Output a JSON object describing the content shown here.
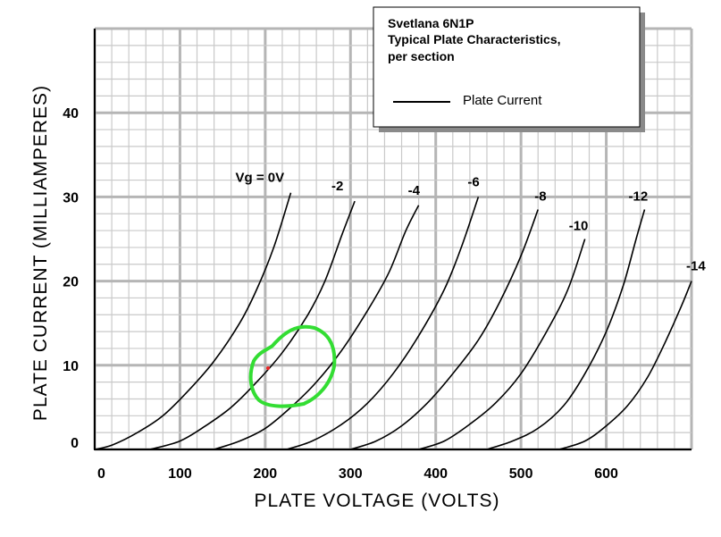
{
  "chart_data": {
    "type": "line",
    "title": [
      "Svetlana 6N1P",
      "Typical Plate Characteristics,",
      "per section"
    ],
    "xlabel": "PLATE VOLTAGE (VOLTS)",
    "ylabel": "PLATE CURRENT (MILLIAMPERES)",
    "xlim": [
      0,
      700
    ],
    "ylim": [
      0,
      50
    ],
    "x_ticks": [
      0,
      100,
      200,
      300,
      400,
      500,
      600
    ],
    "y_ticks": [
      0,
      10,
      20,
      30,
      40
    ],
    "grid": true,
    "legend": {
      "position": "top-right",
      "entries": [
        {
          "label": "Plate Current",
          "color": "#000000"
        }
      ]
    },
    "series": [
      {
        "name": "Vg = 0V",
        "points": [
          [
            0,
            0
          ],
          [
            20,
            0.5
          ],
          [
            50,
            2
          ],
          [
            80,
            4
          ],
          [
            110,
            7
          ],
          [
            140,
            10.5
          ],
          [
            170,
            15
          ],
          [
            190,
            19
          ],
          [
            210,
            24
          ],
          [
            230,
            30.5
          ]
        ]
      },
      {
        "name": "-2",
        "points": [
          [
            65,
            0
          ],
          [
            100,
            1
          ],
          [
            130,
            2.8
          ],
          [
            160,
            5
          ],
          [
            190,
            8
          ],
          [
            220,
            11.5
          ],
          [
            250,
            16
          ],
          [
            270,
            20
          ],
          [
            290,
            25.5
          ],
          [
            305,
            29.5
          ]
        ]
      },
      {
        "name": "-4",
        "points": [
          [
            140,
            0
          ],
          [
            170,
            1
          ],
          [
            200,
            2.5
          ],
          [
            230,
            5
          ],
          [
            260,
            8
          ],
          [
            290,
            11.8
          ],
          [
            320,
            16.5
          ],
          [
            345,
            21
          ],
          [
            365,
            26
          ],
          [
            380,
            29
          ]
        ]
      },
      {
        "name": "-6",
        "points": [
          [
            225,
            0
          ],
          [
            255,
            1
          ],
          [
            290,
            3
          ],
          [
            320,
            5.5
          ],
          [
            350,
            9
          ],
          [
            380,
            13.5
          ],
          [
            410,
            19
          ],
          [
            430,
            24
          ],
          [
            450,
            30
          ]
        ]
      },
      {
        "name": "-8",
        "points": [
          [
            300,
            0
          ],
          [
            330,
            1
          ],
          [
            360,
            2.8
          ],
          [
            390,
            5.5
          ],
          [
            420,
            9
          ],
          [
            450,
            13
          ],
          [
            475,
            17.5
          ],
          [
            500,
            23
          ],
          [
            520,
            28.5
          ]
        ]
      },
      {
        "name": "-10",
        "points": [
          [
            380,
            0
          ],
          [
            410,
            1
          ],
          [
            440,
            3
          ],
          [
            470,
            5.5
          ],
          [
            500,
            9
          ],
          [
            530,
            14
          ],
          [
            555,
            19
          ],
          [
            575,
            25
          ]
        ]
      },
      {
        "name": "-12",
        "points": [
          [
            460,
            0
          ],
          [
            490,
            1
          ],
          [
            520,
            2.5
          ],
          [
            550,
            5.2
          ],
          [
            575,
            9
          ],
          [
            600,
            14
          ],
          [
            620,
            19.5
          ],
          [
            635,
            25
          ],
          [
            645,
            28.5
          ]
        ]
      },
      {
        "name": "-14",
        "points": [
          [
            545,
            0
          ],
          [
            575,
            1
          ],
          [
            600,
            2.8
          ],
          [
            625,
            5.2
          ],
          [
            648,
            8.5
          ],
          [
            668,
            12.5
          ],
          [
            688,
            17
          ],
          [
            700,
            20
          ]
        ]
      }
    ],
    "label_positions_note": "",
    "annotations": {
      "overlay_color": "#33dd33",
      "marker_color": "#ee2222"
    }
  }
}
